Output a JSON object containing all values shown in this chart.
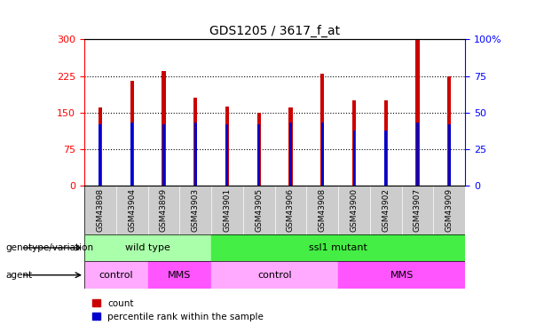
{
  "title": "GDS1205 / 3617_f_at",
  "samples": [
    "GSM43898",
    "GSM43904",
    "GSM43899",
    "GSM43903",
    "GSM43901",
    "GSM43905",
    "GSM43906",
    "GSM43908",
    "GSM43900",
    "GSM43902",
    "GSM43907",
    "GSM43909"
  ],
  "counts": [
    160,
    215,
    235,
    180,
    162,
    150,
    160,
    230,
    175,
    175,
    300,
    225
  ],
  "percentile_ranks": [
    42,
    43,
    42,
    43,
    42,
    42,
    43,
    43,
    38,
    38,
    43,
    42
  ],
  "ylim_left": [
    0,
    300
  ],
  "ylim_right": [
    0,
    100
  ],
  "yticks_left": [
    0,
    75,
    150,
    225,
    300
  ],
  "yticks_right": [
    0,
    25,
    50,
    75,
    100
  ],
  "ytick_right_labels": [
    "0",
    "25",
    "50",
    "75",
    "100%"
  ],
  "genotype_groups": [
    {
      "label": "wild type",
      "start": 0,
      "end": 4,
      "color": "#AAFFAA"
    },
    {
      "label": "ssl1 mutant",
      "start": 4,
      "end": 12,
      "color": "#44EE44"
    }
  ],
  "agent_groups": [
    {
      "label": "control",
      "start": 0,
      "end": 2,
      "color": "#FFAAFF"
    },
    {
      "label": "MMS",
      "start": 2,
      "end": 4,
      "color": "#FF55FF"
    },
    {
      "label": "control",
      "start": 4,
      "end": 8,
      "color": "#FFAAFF"
    },
    {
      "label": "MMS",
      "start": 8,
      "end": 12,
      "color": "#FF55FF"
    }
  ],
  "bar_color": "#CC0000",
  "percentile_color": "#0000CC",
  "bar_width": 0.12,
  "pct_bar_width": 0.08,
  "annotation_row1_label": "genotype/variation",
  "annotation_row2_label": "agent",
  "legend_count_label": "count",
  "legend_pct_label": "percentile rank within the sample",
  "tick_bg_color": "#CCCCCC",
  "dotted_lines": [
    75,
    150,
    225
  ]
}
